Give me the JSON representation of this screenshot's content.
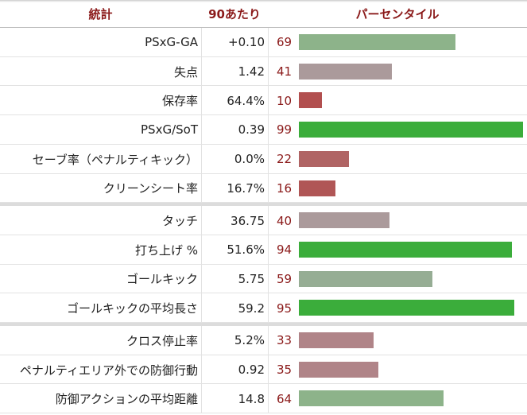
{
  "header": {
    "stat": "統計",
    "per90": "90あたり",
    "percentile": "パーセンタイル"
  },
  "groups": [
    {
      "rows": [
        {
          "stat": "PSxG-GA",
          "per90": "+0.10",
          "percentile": 69,
          "color": "#8db38a"
        },
        {
          "stat": "失点",
          "per90": "1.42",
          "percentile": 41,
          "color": "#ab9a9b"
        },
        {
          "stat": "保存率",
          "per90": "64.4%",
          "percentile": 10,
          "color": "#b24f4f"
        },
        {
          "stat": "PSxG/SoT",
          "per90": "0.39",
          "percentile": 99,
          "color": "#3bad3b"
        },
        {
          "stat": "セーブ率（ペナルティキック）",
          "per90": "0.0%",
          "percentile": 22,
          "color": "#b06464"
        },
        {
          "stat": "クリーンシート率",
          "per90": "16.7%",
          "percentile": 16,
          "color": "#b05656"
        }
      ]
    },
    {
      "rows": [
        {
          "stat": "タッチ",
          "per90": "36.75",
          "percentile": 40,
          "color": "#ab9a9b"
        },
        {
          "stat": "打ち上げ %",
          "per90": "51.6%",
          "percentile": 94,
          "color": "#3bad3b"
        },
        {
          "stat": "ゴールキック",
          "per90": "5.75",
          "percentile": 59,
          "color": "#96ad94"
        },
        {
          "stat": "ゴールキックの平均長さ",
          "per90": "59.2",
          "percentile": 95,
          "color": "#3bad3b"
        }
      ]
    },
    {
      "rows": [
        {
          "stat": "クロス停止率",
          "per90": "5.2%",
          "percentile": 33,
          "color": "#b08488"
        },
        {
          "stat": "ペナルティエリア外での防御行動",
          "per90": "0.92",
          "percentile": 35,
          "color": "#b08488"
        },
        {
          "stat": "防御アクションの平均距離",
          "per90": "14.8",
          "percentile": 64,
          "color": "#8db38a"
        }
      ]
    }
  ]
}
